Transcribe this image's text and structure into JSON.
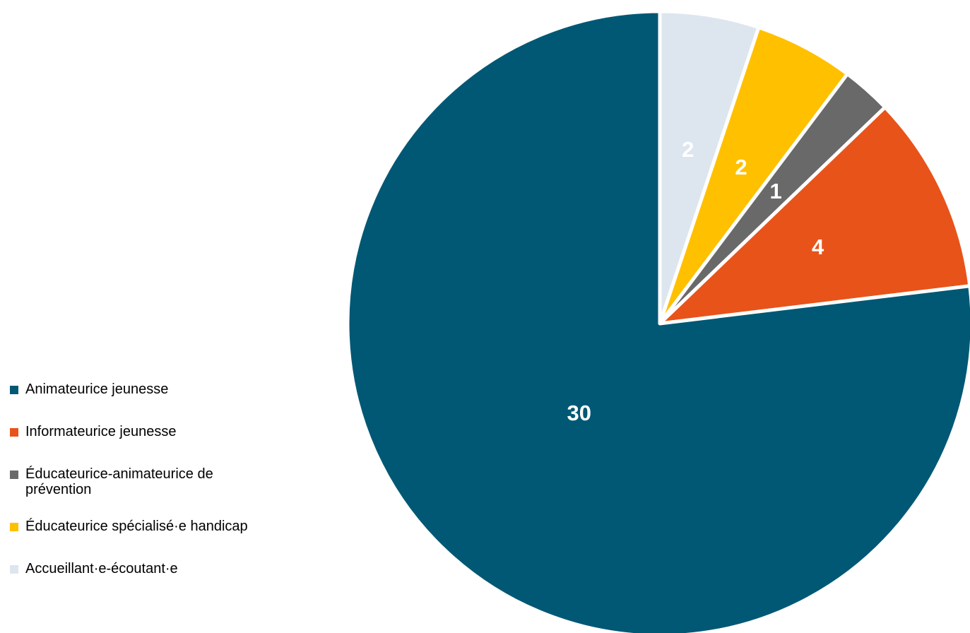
{
  "chart_data": {
    "type": "pie",
    "categories": [
      "Accueillant·e-écoutant·e",
      "Éducateurice spécialisé·e handicap",
      "Éducateurice-animateurice de prévention",
      "Informateurice jeunesse",
      "Animateurice jeunesse"
    ],
    "values": [
      2,
      2,
      1,
      4,
      30
    ],
    "colors": [
      "#dde6ef",
      "#ffc000",
      "#696969",
      "#e8531a",
      "#015874"
    ],
    "title": "",
    "legend_position": "left-bottom"
  },
  "legend": {
    "items": [
      {
        "label": "Animateurice jeunesse",
        "color": "#015874"
      },
      {
        "label": "Informateurice jeunesse",
        "color": "#e8531a"
      },
      {
        "label": "Éducateurice-animateurice de prévention",
        "color": "#696969"
      },
      {
        "label": "Éducateurice spécialisé·e handicap",
        "color": "#ffc000"
      },
      {
        "label": "Accueillant·e-écoutant·e",
        "color": "#dde6ef"
      }
    ]
  }
}
